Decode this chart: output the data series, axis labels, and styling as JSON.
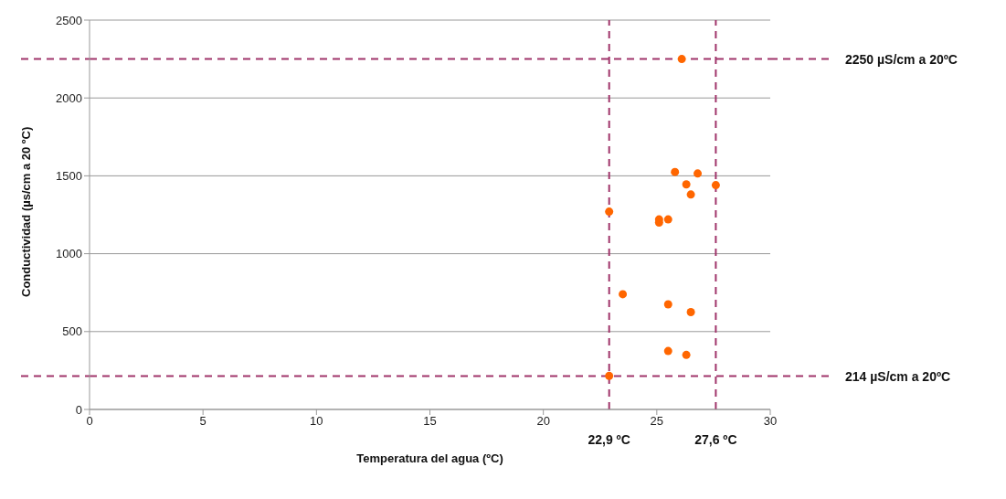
{
  "chart_data": {
    "type": "scatter",
    "xlabel": "Temperatura del agua (ºC)",
    "ylabel": "Conductividad (µs/cm a 20 ºC)",
    "x": [
      26.1,
      25.8,
      26.8,
      26.3,
      27.6,
      26.5,
      22.9,
      25.1,
      25.1,
      25.5,
      23.5,
      25.5,
      26.5,
      25.5,
      26.3,
      22.9
    ],
    "values": [
      2250,
      1525,
      1515,
      1445,
      1440,
      1380,
      1270,
      1220,
      1200,
      1220,
      740,
      675,
      625,
      375,
      350,
      215
    ],
    "color": "#ff6600",
    "marker": "circle",
    "xlim": [
      0,
      30
    ],
    "xticks": [
      0,
      5,
      10,
      15,
      20,
      25,
      30
    ],
    "ylim": [
      0,
      2500
    ],
    "yticks": [
      0,
      500,
      1000,
      1500,
      2000,
      2500
    ],
    "grid": "y",
    "legend": false,
    "ref_lines": [
      {
        "axis": "y",
        "value": 2250,
        "label": "2250 µS/cm a 20ºC",
        "color": "#a0346a",
        "line_style": "dashed"
      },
      {
        "axis": "y",
        "value": 214,
        "label": "214 µS/cm a 20ºC",
        "color": "#a0346a",
        "line_style": "dashed"
      },
      {
        "axis": "x",
        "value": 22.9,
        "label": "22,9 ºC",
        "color": "#a0346a",
        "line_style": "dashed"
      },
      {
        "axis": "x",
        "value": 27.6,
        "label": "27,6 ºC",
        "color": "#a0346a",
        "line_style": "dashed"
      }
    ]
  }
}
